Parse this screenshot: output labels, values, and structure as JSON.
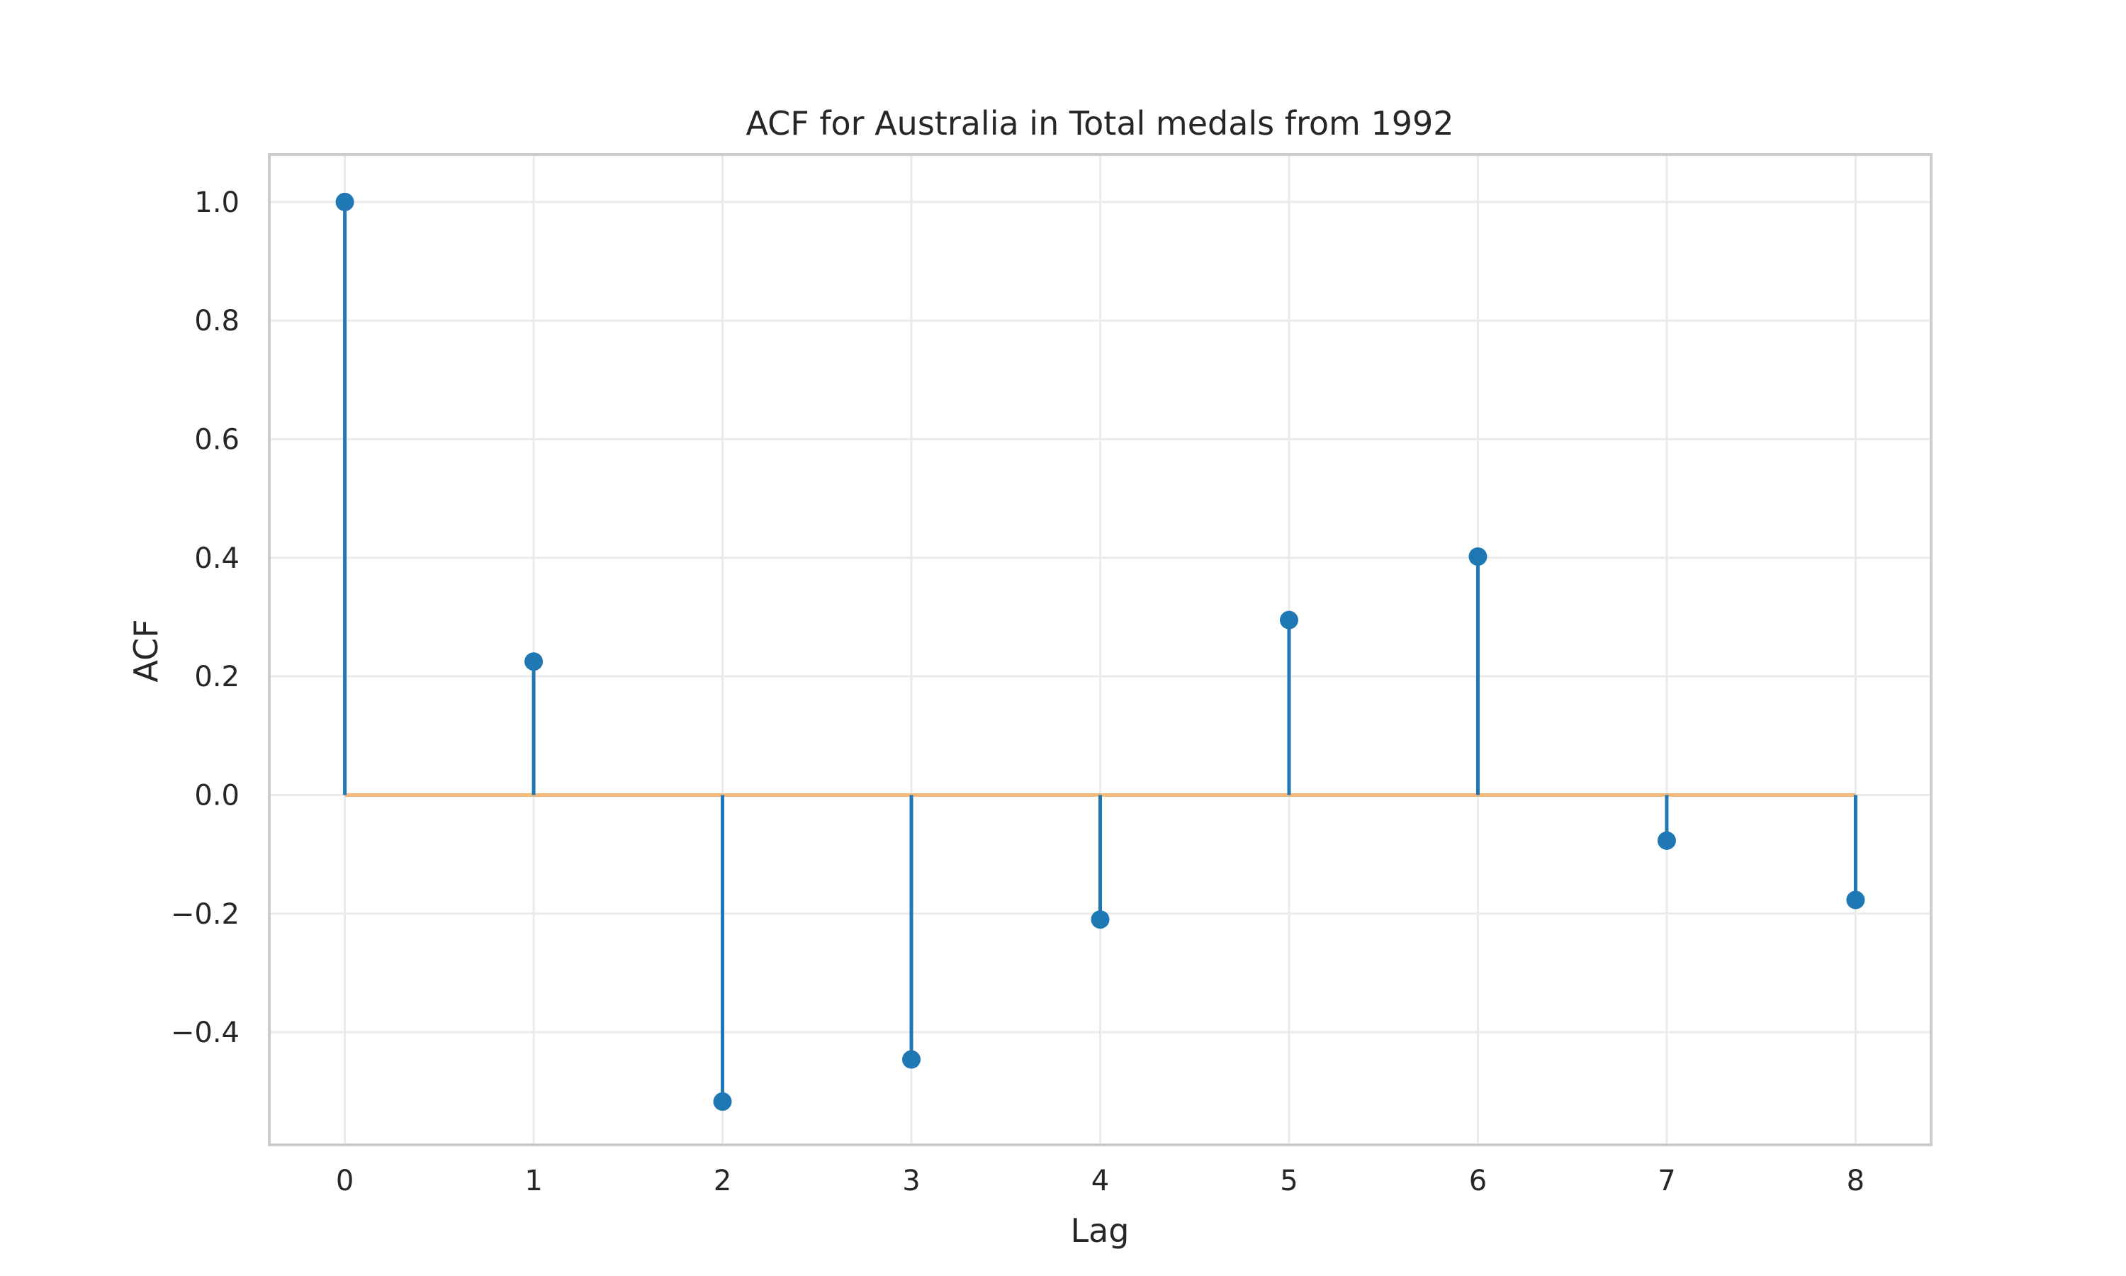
{
  "chart_data": {
    "type": "stem",
    "title": "ACF for Australia in Total medals from 1992",
    "xlabel": "Lag",
    "ylabel": "ACF",
    "x": [
      0,
      1,
      2,
      3,
      4,
      5,
      6,
      7,
      8
    ],
    "values": [
      1.0,
      0.225,
      -0.517,
      -0.446,
      -0.21,
      0.295,
      0.402,
      -0.077,
      -0.177
    ],
    "xlim": [
      -0.4,
      8.4
    ],
    "ylim": [
      -0.59,
      1.08
    ],
    "xticks": [
      0,
      1,
      2,
      3,
      4,
      5,
      6,
      7,
      8
    ],
    "xtick_labels": [
      "0",
      "1",
      "2",
      "3",
      "4",
      "5",
      "6",
      "7",
      "8"
    ],
    "yticks": [
      -0.4,
      -0.2,
      0.0,
      0.2,
      0.4,
      0.6,
      0.8,
      1.0
    ],
    "ytick_labels": [
      "−0.4",
      "−0.2",
      "0.0",
      "0.2",
      "0.4",
      "0.6",
      "0.8",
      "1.0"
    ],
    "grid": true,
    "colors": {
      "stem": "#1f77b4",
      "baseline": "#f5b97a",
      "grid": "#ebebeb",
      "frame": "#cccccc",
      "text": "#262626"
    }
  }
}
